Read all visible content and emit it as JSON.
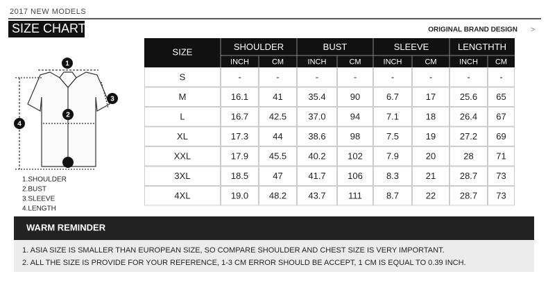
{
  "header": {
    "subtitle": "2017 NEW MODELS",
    "title": "SIZE CHART",
    "brand": "ORIGINAL BRAND DESIGN",
    "arrow": ">"
  },
  "diagram": {
    "markers": [
      "1",
      "2",
      "3",
      "4"
    ],
    "legend": [
      "1.SHOULDER",
      "2.BUST",
      "3.SLEEVE",
      "4.LENGTH"
    ]
  },
  "table": {
    "size_label": "SIZE",
    "groups": [
      {
        "name": "SHOULDER",
        "units": [
          "INCH",
          "CM"
        ]
      },
      {
        "name": "BUST",
        "units": [
          "INCH",
          "CM"
        ]
      },
      {
        "name": "SLEEVE",
        "units": [
          "INCH",
          "CM"
        ]
      },
      {
        "name": "LENGTHTH",
        "units": [
          "INCH",
          "CM"
        ]
      }
    ],
    "rows": [
      [
        "S",
        "-",
        "-",
        "-",
        "-",
        "-",
        "-",
        "-",
        "-"
      ],
      [
        "M",
        "16.1",
        "41",
        "35.4",
        "90",
        "6.7",
        "17",
        "25.6",
        "65"
      ],
      [
        "L",
        "16.7",
        "42.5",
        "37.0",
        "94",
        "7.1",
        "18",
        "26.4",
        "67"
      ],
      [
        "XL",
        "17.3",
        "44",
        "38.6",
        "98",
        "7.5",
        "19",
        "27.2",
        "69"
      ],
      [
        "XXL",
        "17.9",
        "45.5",
        "40.2",
        "102",
        "7.9",
        "20",
        "28",
        "71"
      ],
      [
        "3XL",
        "18.5",
        "47",
        "41.7",
        "106",
        "8.3",
        "21",
        "28.7",
        "73"
      ],
      [
        "4XL",
        "19.0",
        "48.2",
        "43.7",
        "111",
        "8.7",
        "22",
        "28.7",
        "73"
      ]
    ]
  },
  "reminder": {
    "title": "WARM REMINDER",
    "notes": [
      "1.  ASIA SIZE IS SMALLER THAN EUROPEAN SIZE, SO COMPARE SHOULDER AND CHEST SIZE IS VERY IMPORTANT.",
      "2.  ALL THE SIZE IS PROVIDE FOR YOUR REFERENCE, 1-3 CM ERROR SHOULD BE ACCEPT, 1 CM IS EQUAL TO 0.39 INCH."
    ]
  }
}
